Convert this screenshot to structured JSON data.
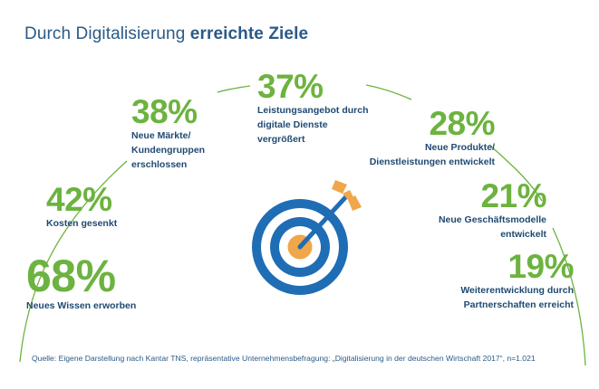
{
  "header": {
    "title_regular": "Durch Digitalisierung",
    "title_bold": "erreichte Ziele"
  },
  "colors": {
    "accent_green": "#6cb33f",
    "text_blue": "#204a72",
    "ring_blue": "#1f6db5",
    "arrow_orange": "#f0a64a"
  },
  "chart_data": {
    "type": "bar",
    "title": "Durch Digitalisierung erreichte Ziele",
    "unit": "%",
    "categories": [
      "Neues Wissen erworben",
      "Kosten gesenkt",
      "Neue Märkte/ Kundengruppen erschlossen",
      "Leistungsangebot durch digitale Dienste vergrößert",
      "Neue Produkte/ Dienstleistungen entwickelt",
      "Neue Geschäftsmodelle entwickelt",
      "Weiterentwicklung durch Partnerschaften erreicht"
    ],
    "values": [
      68,
      42,
      38,
      37,
      28,
      21,
      19
    ],
    "labels": [
      "68%",
      "42%",
      "38%",
      "37%",
      "28%",
      "21%",
      "19%"
    ]
  },
  "stats": [
    {
      "pct": "68%",
      "lines": [
        "Neues Wissen erworben"
      ]
    },
    {
      "pct": "42%",
      "lines": [
        "Kosten gesenkt"
      ]
    },
    {
      "pct": "38%",
      "lines": [
        "Neue Märkte/",
        "Kundengruppen",
        "erschlossen"
      ]
    },
    {
      "pct": "37%",
      "lines": [
        "Leistungsangebot durch",
        "digitale Dienste",
        "vergrößert"
      ]
    },
    {
      "pct": "28%",
      "lines": [
        "Neue Produkte/",
        "Dienstleistungen entwickelt"
      ]
    },
    {
      "pct": "21%",
      "lines": [
        "Neue Geschäftsmodelle",
        "entwickelt"
      ]
    },
    {
      "pct": "19%",
      "lines": [
        "Weiterentwicklung durch",
        "Partnerschaften erreicht"
      ]
    }
  ],
  "icons": {
    "target": "target-with-arrow-icon"
  },
  "footer": {
    "source": "Quelle: Eigene Darstellung nach Kantar TNS, repräsentative Unternehmensbefragung: „Digitalisierung in der deutschen Wirtschaft 2017“, n=1.021"
  }
}
